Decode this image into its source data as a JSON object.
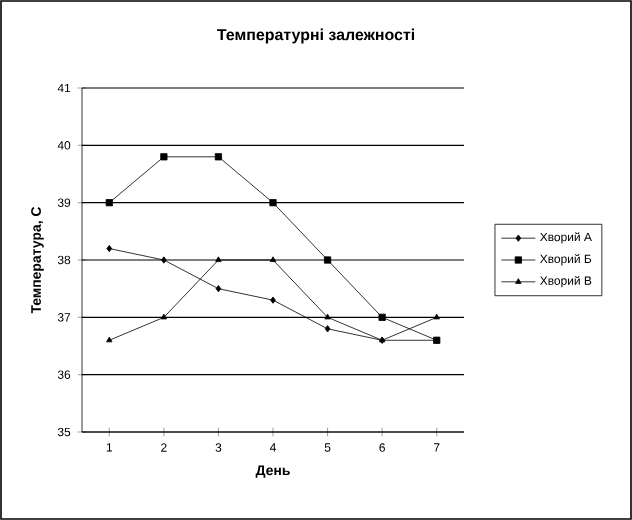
{
  "chart_data": {
    "type": "line",
    "title": "Температурні залежності",
    "xlabel": "День",
    "ylabel": "Температура, С",
    "categories": [
      "1",
      "2",
      "3",
      "4",
      "5",
      "6",
      "7"
    ],
    "series": [
      {
        "name": "Хворий А",
        "color": "#000000",
        "marker": "diamond",
        "values": [
          38.2,
          38.0,
          37.5,
          37.3,
          36.8,
          36.6,
          36.6
        ]
      },
      {
        "name": "Хворий Б",
        "color": "#000000",
        "marker": "square",
        "values": [
          39.0,
          39.8,
          39.8,
          39.0,
          38.0,
          37.0,
          36.6
        ]
      },
      {
        "name": "Хворий В",
        "color": "#000000",
        "marker": "triangle",
        "values": [
          36.6,
          37.0,
          38.0,
          38.0,
          37.0,
          36.6,
          37.0
        ]
      }
    ],
    "ylim": [
      35,
      41
    ],
    "yticks": [
      35,
      36,
      37,
      38,
      39,
      40,
      41
    ],
    "grid": "y",
    "legend": "right",
    "line_style": "solid"
  }
}
